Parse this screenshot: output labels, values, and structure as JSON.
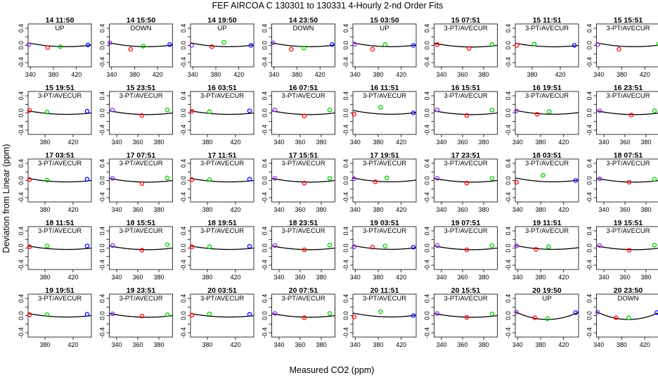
{
  "chart_data": {
    "type": "scatter",
    "title": "FEF   AIRCOA C   130301 to 130331   4-Hourly 2-nd Order Fits",
    "xlabel": "Measured CO2 (ppm)",
    "ylabel": "Deviation from Linear (ppm)",
    "grid": false,
    "layout": {
      "rows": 5,
      "cols": 8
    },
    "ylim": [
      -0.5,
      0.5
    ],
    "yticks": [
      -0.4,
      -0.2,
      0.0,
      0.2,
      0.4
    ],
    "ytick_labels": [
      "-0.4",
      "-0.2",
      "0.0",
      "0.2",
      "0.4"
    ],
    "colors": {
      "fit": "#000000",
      "s1": "#8a2be2",
      "s2": "#ff0000",
      "s3": "#00c800",
      "s4": "#0000ff"
    },
    "xaxes": {
      "A": {
        "xlim": [
          336,
          446
        ],
        "ticks": [
          340,
          380,
          420
        ],
        "tick_labels": [
          "340",
          "380",
          "420"
        ]
      },
      "B": {
        "xlim": [
          356,
          446
        ],
        "ticks": [
          380,
          420
        ],
        "tick_labels": [
          "380",
          "420"
        ]
      },
      "C": {
        "xlim": [
          333,
          393
        ],
        "ticks": [
          340,
          360,
          380
        ],
        "tick_labels": [
          "340",
          "360",
          "380"
        ]
      }
    },
    "panels": [
      {
        "title": "14 11:50",
        "mode": "UP",
        "xaxis": "A",
        "curve": [
          0.06,
          -0.028,
          0.01
        ],
        "points": [
          [
            337,
            0.02,
            "s1"
          ],
          [
            370,
            -0.05,
            "s2"
          ],
          [
            392,
            -0.03,
            "s3"
          ],
          [
            440,
            0.01,
            "s4"
          ]
        ]
      },
      {
        "title": "14 15:50",
        "mode": "DOWN",
        "xaxis": "A",
        "curve": [
          0.06,
          -0.028,
          0.01
        ],
        "points": [
          [
            337,
            0.06,
            "s1"
          ],
          [
            373,
            -0.09,
            "s2"
          ],
          [
            395,
            -0.02,
            "s3"
          ],
          [
            441,
            0.02,
            "s4"
          ]
        ]
      },
      {
        "title": "14 19:50",
        "mode": "UP",
        "xaxis": "A",
        "curve": [
          0.06,
          -0.028,
          0.01
        ],
        "points": [
          [
            338,
            0.0,
            "s1"
          ],
          [
            373,
            -0.03,
            "s2"
          ],
          [
            394,
            0.07,
            "s3"
          ],
          [
            441,
            0.0,
            "s4"
          ]
        ]
      },
      {
        "title": "14 23:50",
        "mode": "DOWN",
        "xaxis": "A",
        "curve": [
          0.06,
          -0.028,
          0.01
        ],
        "points": [
          [
            338,
            0.06,
            "s1"
          ],
          [
            370,
            -0.09,
            "s2"
          ],
          [
            392,
            -0.06,
            "s3"
          ],
          [
            441,
            0.02,
            "s4"
          ]
        ]
      },
      {
        "title": "15 03:50",
        "mode": "UP",
        "xaxis": "A",
        "curve": [
          0.06,
          -0.028,
          0.01
        ],
        "points": [
          [
            339,
            0.03,
            "s1"
          ],
          [
            370,
            -0.09,
            "s2"
          ],
          [
            392,
            0.02,
            "s3"
          ],
          [
            441,
            0.0,
            "s4"
          ]
        ]
      },
      {
        "title": "15 07:51",
        "mode": "3-PT/AVECUR",
        "xaxis": "C",
        "curve": [
          0.05,
          -0.035,
          0.0
        ],
        "points": [
          [
            336,
            0.02,
            "s2"
          ],
          [
            366,
            -0.07,
            "s2"
          ],
          [
            388,
            0.02,
            "s3"
          ]
        ]
      },
      {
        "title": "15 11:51",
        "mode": "3-PT/AVECUR",
        "xaxis": "B",
        "curve": [
          0.05,
          -0.03,
          0.0
        ],
        "points": [
          [
            358,
            0.0,
            "s2"
          ],
          [
            383,
            0.03,
            "s3"
          ],
          [
            440,
            0.0,
            "s4"
          ]
        ]
      },
      {
        "title": "15 15:51",
        "mode": "3-PT/AVECUR",
        "xaxis": "A",
        "curve": [
          0.06,
          -0.028,
          0.01
        ],
        "points": [
          [
            338,
            0.02,
            "s1"
          ],
          [
            375,
            -0.09,
            "s2"
          ],
          [
            444,
            0.03,
            "s3"
          ]
        ]
      },
      {
        "title": "15 19:51",
        "mode": "3-PT/AVECUR",
        "xaxis": "B",
        "curve": [
          0.05,
          -0.03,
          0.0
        ],
        "points": [
          [
            358,
            0.06,
            "s2"
          ],
          [
            383,
            0.02,
            "s3"
          ],
          [
            440,
            0.04,
            "s4"
          ]
        ]
      },
      {
        "title": "15 23:51",
        "mode": "3-PT/AVECUR",
        "xaxis": "C",
        "curve": [
          0.05,
          -0.035,
          0.0
        ],
        "points": [
          [
            336,
            0.07,
            "s1"
          ],
          [
            364,
            -0.06,
            "s2"
          ],
          [
            388,
            0.07,
            "s3"
          ]
        ]
      },
      {
        "title": "16 03:51",
        "mode": "3-PT/AVECUR",
        "xaxis": "B",
        "curve": [
          0.05,
          -0.03,
          0.0
        ],
        "points": [
          [
            358,
            0.04,
            "s2"
          ],
          [
            383,
            0.03,
            "s3"
          ],
          [
            440,
            0.05,
            "s4"
          ]
        ]
      },
      {
        "title": "16 07:51",
        "mode": "3-PT/AVECUR",
        "xaxis": "C",
        "curve": [
          0.05,
          -0.035,
          0.0
        ],
        "points": [
          [
            336,
            0.07,
            "s1"
          ],
          [
            364,
            -0.07,
            "s2"
          ],
          [
            388,
            0.07,
            "s3"
          ]
        ]
      },
      {
        "title": "16 11:51",
        "mode": "3-PT/AVECUR",
        "xaxis": "A",
        "curve": [
          0.06,
          -0.028,
          0.01
        ],
        "points": [
          [
            338,
            -0.03,
            "s2"
          ],
          [
            384,
            0.13,
            "s3"
          ],
          [
            441,
            0.0,
            "s4"
          ]
        ]
      },
      {
        "title": "16 15:51",
        "mode": "3-PT/AVECUR",
        "xaxis": "C",
        "curve": [
          0.05,
          -0.035,
          0.0
        ],
        "points": [
          [
            336,
            0.07,
            "s1"
          ],
          [
            364,
            -0.06,
            "s2"
          ],
          [
            388,
            0.07,
            "s3"
          ]
        ]
      },
      {
        "title": "16 19:51",
        "mode": "3-PT/AVECUR",
        "xaxis": "A",
        "curve": [
          0.06,
          -0.028,
          0.01
        ],
        "points": [
          [
            338,
            0.05,
            "s1"
          ],
          [
            374,
            -0.03,
            "s2"
          ],
          [
            395,
            0.03,
            "s3"
          ]
        ]
      },
      {
        "title": "16 23:51",
        "mode": "3-PT/AVECUR",
        "xaxis": "C",
        "curve": [
          0.05,
          -0.035,
          0.0
        ],
        "points": [
          [
            336,
            0.05,
            "s1"
          ],
          [
            366,
            -0.05,
            "s2"
          ],
          [
            388,
            0.05,
            "s3"
          ]
        ]
      },
      {
        "title": "17 03:51",
        "mode": "3-PT/AVECUR",
        "xaxis": "B",
        "curve": [
          0.05,
          -0.03,
          0.0
        ],
        "points": [
          [
            358,
            0.02,
            "s2"
          ],
          [
            383,
            0.01,
            "s3"
          ],
          [
            440,
            0.03,
            "s4"
          ]
        ]
      },
      {
        "title": "17 07:51",
        "mode": "3-PT/AVECUR",
        "xaxis": "C",
        "curve": [
          0.05,
          -0.035,
          0.0
        ],
        "points": [
          [
            336,
            0.05,
            "s1"
          ],
          [
            364,
            -0.07,
            "s2"
          ],
          [
            388,
            0.06,
            "s3"
          ]
        ]
      },
      {
        "title": "17 11:51",
        "mode": "3-PT/AVECUR",
        "xaxis": "B",
        "curve": [
          0.05,
          -0.03,
          0.0
        ],
        "points": [
          [
            358,
            0.02,
            "s2"
          ],
          [
            383,
            0.02,
            "s3"
          ],
          [
            440,
            0.03,
            "s4"
          ]
        ]
      },
      {
        "title": "17 15:51",
        "mode": "3-PT/AVECUR",
        "xaxis": "C",
        "curve": [
          0.05,
          -0.035,
          0.0
        ],
        "points": [
          [
            336,
            0.05,
            "s1"
          ],
          [
            364,
            -0.06,
            "s2"
          ],
          [
            388,
            0.05,
            "s3"
          ]
        ]
      },
      {
        "title": "17 19:51",
        "mode": "3-PT/AVECUR",
        "xaxis": "A",
        "curve": [
          0.06,
          -0.028,
          0.01
        ],
        "points": [
          [
            338,
            0.04,
            "s1"
          ],
          [
            375,
            -0.03,
            "s2"
          ],
          [
            395,
            0.06,
            "s3"
          ]
        ]
      },
      {
        "title": "17 23:51",
        "mode": "3-PT/AVECUR",
        "xaxis": "C",
        "curve": [
          0.05,
          -0.035,
          0.0
        ],
        "points": [
          [
            336,
            0.05,
            "s1"
          ],
          [
            364,
            -0.06,
            "s2"
          ],
          [
            388,
            0.05,
            "s3"
          ]
        ]
      },
      {
        "title": "18 03:51",
        "mode": "3-PT/AVECUR",
        "xaxis": "A",
        "curve": [
          0.06,
          -0.028,
          0.01
        ],
        "points": [
          [
            338,
            -0.04,
            "s2"
          ],
          [
            384,
            0.12,
            "s3"
          ],
          [
            441,
            0.0,
            "s4"
          ]
        ]
      },
      {
        "title": "18 07:51",
        "mode": "3-PT/AVECUR",
        "xaxis": "C",
        "curve": [
          0.05,
          -0.035,
          0.0
        ],
        "points": [
          [
            336,
            0.04,
            "s1"
          ],
          [
            364,
            -0.04,
            "s2"
          ],
          [
            388,
            0.03,
            "s3"
          ]
        ]
      },
      {
        "title": "18 11:51",
        "mode": "3-PT/AVECUR",
        "xaxis": "B",
        "curve": [
          0.05,
          -0.03,
          0.0
        ],
        "points": [
          [
            358,
            0.03,
            "s2"
          ],
          [
            383,
            0.05,
            "s3"
          ],
          [
            440,
            0.05,
            "s4"
          ]
        ]
      },
      {
        "title": "18 15:51",
        "mode": "3-PT/AVECUR",
        "xaxis": "C",
        "curve": [
          0.05,
          -0.035,
          0.0
        ],
        "points": [
          [
            336,
            0.06,
            "s1"
          ],
          [
            364,
            -0.05,
            "s2"
          ],
          [
            388,
            0.08,
            "s3"
          ]
        ]
      },
      {
        "title": "18 19:51",
        "mode": "3-PT/AVECUR",
        "xaxis": "B",
        "curve": [
          0.05,
          -0.03,
          0.0
        ],
        "points": [
          [
            358,
            0.03,
            "s2"
          ],
          [
            383,
            0.03,
            "s3"
          ],
          [
            440,
            0.04,
            "s4"
          ]
        ]
      },
      {
        "title": "18 23:51",
        "mode": "3-PT/AVECUR",
        "xaxis": "C",
        "curve": [
          0.05,
          -0.035,
          0.0
        ],
        "points": [
          [
            336,
            0.06,
            "s1"
          ],
          [
            364,
            -0.04,
            "s2"
          ],
          [
            388,
            0.07,
            "s3"
          ]
        ]
      },
      {
        "title": "19 03:51",
        "mode": "3-PT/AVECUR",
        "xaxis": "A",
        "curve": [
          0.06,
          -0.028,
          0.01
        ],
        "points": [
          [
            338,
            0.03,
            "s1"
          ],
          [
            370,
            0.02,
            "s2"
          ],
          [
            392,
            0.05,
            "s3"
          ],
          [
            441,
            0.02,
            "s4"
          ]
        ]
      },
      {
        "title": "19 07:51",
        "mode": "3-PT/AVECUR",
        "xaxis": "C",
        "curve": [
          0.05,
          -0.035,
          0.0
        ],
        "points": [
          [
            336,
            0.06,
            "s1"
          ],
          [
            364,
            -0.04,
            "s2"
          ],
          [
            388,
            0.06,
            "s3"
          ]
        ]
      },
      {
        "title": "19 11:51",
        "mode": "3-PT/AVECUR",
        "xaxis": "A",
        "curve": [
          0.06,
          -0.028,
          0.01
        ],
        "points": [
          [
            338,
            0.05,
            "s1"
          ],
          [
            372,
            -0.03,
            "s2"
          ],
          [
            394,
            0.03,
            "s3"
          ]
        ]
      },
      {
        "title": "19 15:51",
        "mode": "3-PT/AVECUR",
        "xaxis": "C",
        "curve": [
          0.05,
          -0.035,
          0.0
        ],
        "points": [
          [
            336,
            0.06,
            "s1"
          ],
          [
            364,
            -0.05,
            "s2"
          ],
          [
            388,
            0.07,
            "s3"
          ]
        ]
      },
      {
        "title": "19 19:51",
        "mode": "3-PT/AVECUR",
        "xaxis": "B",
        "curve": [
          0.05,
          -0.03,
          0.0
        ],
        "points": [
          [
            358,
            0.02,
            "s2"
          ],
          [
            383,
            0.02,
            "s3"
          ],
          [
            440,
            0.03,
            "s4"
          ]
        ]
      },
      {
        "title": "19 23:51",
        "mode": "3-PT/AVECUR",
        "xaxis": "C",
        "curve": [
          0.05,
          -0.035,
          0.0
        ],
        "points": [
          [
            336,
            0.04,
            "s1"
          ],
          [
            364,
            -0.01,
            "s2"
          ],
          [
            388,
            0.02,
            "s3"
          ]
        ]
      },
      {
        "title": "20 03:51",
        "mode": "3-PT/AVECUR",
        "xaxis": "B",
        "curve": [
          0.05,
          -0.03,
          0.0
        ],
        "points": [
          [
            358,
            0.01,
            "s2"
          ],
          [
            383,
            0.04,
            "s3"
          ],
          [
            440,
            0.03,
            "s4"
          ]
        ]
      },
      {
        "title": "20 07:51",
        "mode": "3-PT/AVECUR",
        "xaxis": "C",
        "curve": [
          0.05,
          -0.035,
          0.0
        ],
        "points": [
          [
            336,
            0.05,
            "s1"
          ],
          [
            364,
            -0.05,
            "s2"
          ],
          [
            388,
            0.05,
            "s3"
          ]
        ]
      },
      {
        "title": "20 11:51",
        "mode": "3-PT/AVECUR",
        "xaxis": "A",
        "curve": [
          0.06,
          -0.028,
          0.01
        ],
        "points": [
          [
            338,
            -0.03,
            "s2"
          ],
          [
            384,
            0.09,
            "s3"
          ],
          [
            441,
            0.0,
            "s4"
          ]
        ]
      },
      {
        "title": "20 15:51",
        "mode": "3-PT/AVECUR",
        "xaxis": "C",
        "curve": [
          0.05,
          -0.035,
          0.0
        ],
        "points": [
          [
            336,
            0.05,
            "s1"
          ],
          [
            364,
            -0.04,
            "s2"
          ],
          [
            388,
            0.04,
            "s3"
          ]
        ]
      },
      {
        "title": "20 19:50",
        "mode": "UP",
        "xaxis": "A",
        "curve": [
          0.09,
          -0.09,
          0.08
        ],
        "points": [
          [
            338,
            0.08,
            "s1"
          ],
          [
            370,
            -0.05,
            "s2"
          ],
          [
            392,
            -0.07,
            "s3"
          ],
          [
            441,
            0.07,
            "s4"
          ]
        ]
      },
      {
        "title": "20 23:50",
        "mode": "DOWN",
        "xaxis": "A",
        "curve": [
          0.09,
          -0.09,
          0.08
        ],
        "points": [
          [
            338,
            0.08,
            "s1"
          ],
          [
            370,
            -0.05,
            "s2"
          ],
          [
            392,
            -0.05,
            "s3"
          ],
          [
            441,
            0.07,
            "s4"
          ]
        ]
      }
    ]
  }
}
